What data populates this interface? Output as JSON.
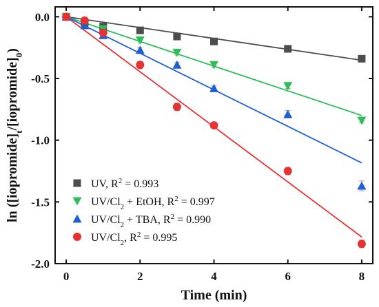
{
  "chart_data": {
    "type": "scatter",
    "x": [
      0,
      0.5,
      1,
      2,
      3,
      4,
      6,
      8
    ],
    "xlabel": "Time (min)",
    "ylabel_parts": [
      "ln ([iopromide]",
      "t",
      "/[iopromide]",
      "0",
      ")"
    ],
    "xlim": [
      -0.3,
      8.3
    ],
    "ylim": [
      -2.0,
      0.08
    ],
    "xticks": [
      0,
      2,
      4,
      6,
      8
    ],
    "yticks": [
      0.0,
      -0.5,
      -1.0,
      -1.5,
      -2.0
    ],
    "ytick_labels": [
      "0.0",
      "-0.5",
      "-1.0",
      "-1.5",
      "-2.0"
    ],
    "legend_position": "bottom-left",
    "series": [
      {
        "label_parts": [
          "UV, R",
          "2",
          " = 0.993"
        ],
        "marker": "square",
        "color": "#4d4d4d",
        "values": [
          0,
          -0.05,
          -0.08,
          -0.11,
          -0.16,
          -0.2,
          -0.26,
          -0.34
        ],
        "errors": [
          0,
          0.02,
          0.02,
          0.02,
          0.02,
          0.02,
          0.02,
          0.02
        ],
        "fit": [
          0,
          -0.044
        ]
      },
      {
        "label_parts": [
          "UV/Cl",
          "2",
          " + EtOH, R",
          "2",
          " = 0.997"
        ],
        "marker": "triangle-down",
        "color": "#2dbe5a",
        "values": [
          0,
          -0.06,
          -0.1,
          -0.19,
          -0.29,
          -0.39,
          -0.56,
          -0.84
        ],
        "errors": [
          0,
          0.02,
          0.02,
          0.02,
          0.02,
          0.02,
          0.02,
          0.02
        ],
        "fit": [
          0,
          -0.1
        ]
      },
      {
        "label_parts": [
          "UV/Cl",
          "2",
          " + TBA, R",
          "2",
          " = 0.990"
        ],
        "marker": "triangle-up",
        "color": "#1f5fd4",
        "values": [
          0,
          -0.07,
          -0.15,
          -0.27,
          -0.39,
          -0.58,
          -0.79,
          -1.37
        ],
        "errors": [
          0,
          0.02,
          0.02,
          0.02,
          0.02,
          0.02,
          0.03,
          0.04
        ],
        "fit": [
          0,
          -0.148
        ]
      },
      {
        "label_parts": [
          "UV/Cl",
          "2",
          ", R",
          "2",
          " = 0.995"
        ],
        "marker": "circle",
        "color": "#e63232",
        "values": [
          0,
          -0.03,
          -0.13,
          -0.39,
          -0.73,
          -0.88,
          -1.25,
          -1.84
        ],
        "errors": [
          0,
          0.02,
          0.02,
          0.03,
          0.03,
          0.02,
          0.03,
          0.03
        ],
        "fit": [
          0,
          -0.223
        ]
      }
    ]
  }
}
